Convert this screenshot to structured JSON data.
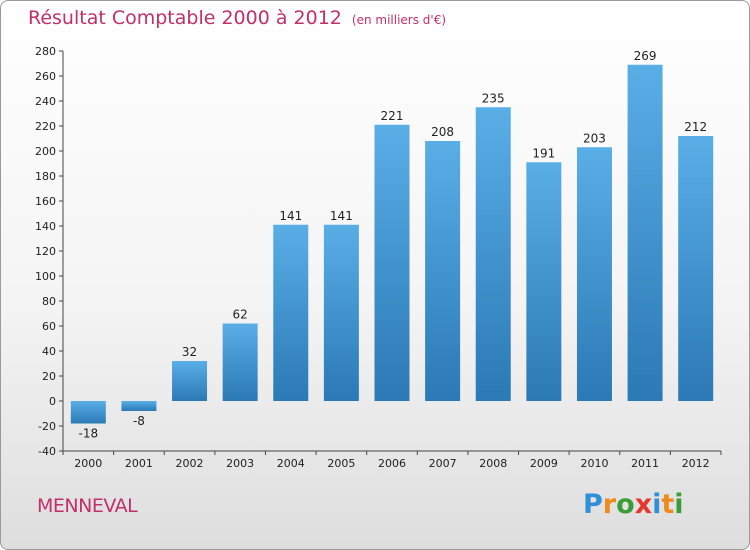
{
  "chart_data": {
    "type": "bar",
    "title": "Résultat Comptable 2000 à 2012",
    "subtitle": "(en milliers d'€)",
    "categories": [
      "2000",
      "2001",
      "2002",
      "2003",
      "2004",
      "2005",
      "2006",
      "2007",
      "2008",
      "2009",
      "2010",
      "2011",
      "2012"
    ],
    "values": [
      -18,
      -8,
      32,
      62,
      141,
      141,
      221,
      208,
      235,
      191,
      203,
      269,
      212
    ],
    "ylim": [
      -40,
      280
    ],
    "yticks": [
      -40,
      -20,
      0,
      20,
      40,
      60,
      80,
      100,
      120,
      140,
      160,
      180,
      200,
      220,
      240,
      260,
      280
    ],
    "xlabel": "",
    "ylabel": "",
    "grid": false,
    "colors": {
      "bar_light": "#5aaee6",
      "bar_dark": "#2b79b5",
      "title": "#c0306a"
    }
  },
  "footer": {
    "town": "MENNEVAL",
    "logo_letters": [
      {
        "ch": "P",
        "color": "#2f8fd8"
      },
      {
        "ch": "r",
        "color": "#f08a1c"
      },
      {
        "ch": "o",
        "color": "#3a9d3a"
      },
      {
        "ch": "x",
        "color": "#e8352a"
      },
      {
        "ch": "i",
        "color": "#2f8fd8"
      },
      {
        "ch": "t",
        "color": "#f08a1c"
      },
      {
        "ch": "i",
        "color": "#3a9d3a"
      }
    ]
  }
}
